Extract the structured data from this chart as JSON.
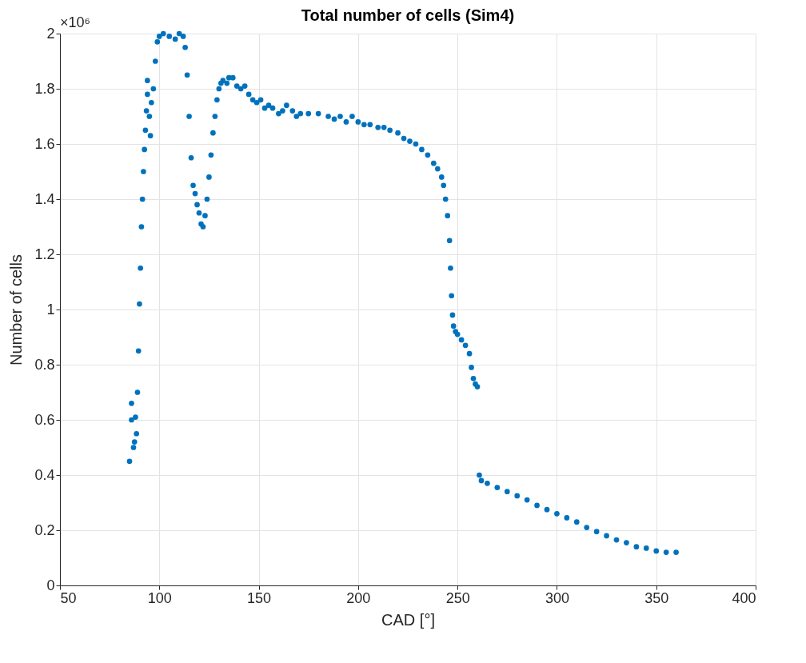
{
  "chart_data": {
    "type": "scatter",
    "title": "Total number of cells (Sim4)",
    "xlabel": "CAD [°]",
    "ylabel": "Number of cells",
    "annotations": [
      "×10⁶"
    ],
    "xlim": [
      50,
      400
    ],
    "xticks": [
      50,
      100,
      150,
      200,
      250,
      300,
      350,
      400
    ],
    "ylim": [
      0,
      2
    ],
    "yticks": [
      0,
      0.2,
      0.4,
      0.6,
      0.8,
      1,
      1.2,
      1.4,
      1.6,
      1.8,
      2
    ],
    "grid": true,
    "marker": "circle",
    "series": [
      {
        "color": "#0072bd",
        "x": [
          85,
          86,
          86,
          87,
          87.5,
          88,
          88.5,
          89,
          89.5,
          90,
          90.5,
          91,
          91.5,
          92,
          92.5,
          93,
          93.5,
          94,
          94,
          95,
          95.5,
          96,
          97,
          98,
          99,
          100,
          102,
          105,
          108,
          110,
          112,
          113,
          114,
          115,
          116,
          117,
          118,
          119,
          120,
          121,
          122,
          123,
          124,
          125,
          126,
          127,
          128,
          129,
          130,
          131,
          132,
          134,
          135,
          137,
          139,
          141,
          143,
          145,
          147,
          149,
          151,
          153,
          155,
          157,
          160,
          162,
          164,
          167,
          169,
          171,
          175,
          180,
          185,
          188,
          191,
          194,
          197,
          200,
          203,
          206,
          210,
          213,
          216,
          220,
          223,
          226,
          229,
          232,
          235,
          238,
          240,
          242,
          243,
          244,
          245,
          246,
          246.5,
          247,
          247.5,
          248,
          249,
          250,
          252,
          254,
          256,
          257,
          258,
          259,
          260,
          261,
          262,
          265,
          270,
          275,
          280,
          285,
          290,
          295,
          300,
          305,
          310,
          315,
          320,
          325,
          330,
          335,
          340,
          345,
          350,
          355,
          360
        ],
        "values": [
          0.45,
          0.6,
          0.66,
          0.5,
          0.52,
          0.61,
          0.55,
          0.7,
          0.85,
          1.02,
          1.15,
          1.3,
          1.4,
          1.5,
          1.58,
          1.65,
          1.72,
          1.78,
          1.83,
          1.7,
          1.63,
          1.75,
          1.8,
          1.9,
          1.97,
          1.99,
          2.0,
          1.99,
          1.98,
          2.0,
          1.99,
          1.95,
          1.85,
          1.7,
          1.55,
          1.45,
          1.42,
          1.38,
          1.35,
          1.31,
          1.3,
          1.34,
          1.4,
          1.48,
          1.56,
          1.64,
          1.7,
          1.76,
          1.8,
          1.82,
          1.83,
          1.82,
          1.84,
          1.84,
          1.81,
          1.8,
          1.81,
          1.78,
          1.76,
          1.75,
          1.76,
          1.73,
          1.74,
          1.73,
          1.71,
          1.72,
          1.74,
          1.72,
          1.7,
          1.71,
          1.71,
          1.71,
          1.7,
          1.69,
          1.7,
          1.68,
          1.7,
          1.68,
          1.67,
          1.67,
          1.66,
          1.66,
          1.65,
          1.64,
          1.62,
          1.61,
          1.6,
          1.58,
          1.56,
          1.53,
          1.51,
          1.48,
          1.45,
          1.4,
          1.34,
          1.25,
          1.15,
          1.05,
          0.98,
          0.94,
          0.92,
          0.91,
          0.89,
          0.87,
          0.84,
          0.79,
          0.75,
          0.73,
          0.72,
          0.4,
          0.38,
          0.37,
          0.355,
          0.34,
          0.325,
          0.31,
          0.29,
          0.275,
          0.26,
          0.245,
          0.23,
          0.21,
          0.195,
          0.18,
          0.165,
          0.155,
          0.14,
          0.135,
          0.125,
          0.12,
          0.12
        ]
      }
    ]
  }
}
